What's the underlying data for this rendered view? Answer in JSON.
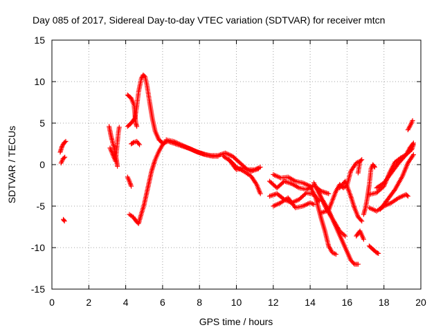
{
  "chart_data": {
    "type": "scatter",
    "title": "Day 085 of 2017, Sidereal Day-to-day VTEC variation (SDTVAR) for receiver mtcn",
    "xlabel": "GPS time / hours",
    "ylabel": "SDTVAR / TECUs",
    "xlim": [
      0,
      20
    ],
    "ylim": [
      -15,
      15
    ],
    "xticks": [
      0,
      2,
      4,
      6,
      8,
      10,
      12,
      14,
      16,
      18,
      20
    ],
    "yticks": [
      -15,
      -10,
      -5,
      0,
      5,
      10,
      15
    ],
    "xtick_labels": [
      "0",
      "2",
      "4",
      "6",
      "8",
      "10",
      "12",
      "14",
      "16",
      "18",
      "20"
    ],
    "ytick_labels": [
      "-15",
      "-10",
      "-5",
      "0",
      "5",
      "10",
      "15"
    ],
    "grid": true,
    "marker": "plus",
    "color": "#ff0000",
    "series": [
      {
        "name": "trace-a",
        "points": [
          [
            0.45,
            1.5
          ],
          [
            0.55,
            2.2
          ],
          [
            0.65,
            2.6
          ],
          [
            0.75,
            2.8
          ]
        ]
      },
      {
        "name": "trace-b",
        "points": [
          [
            0.5,
            0.2
          ],
          [
            0.6,
            0.7
          ],
          [
            0.7,
            0.9
          ]
        ]
      },
      {
        "name": "trace-c",
        "points": [
          [
            0.62,
            -6.6
          ],
          [
            0.68,
            -6.8
          ]
        ]
      },
      {
        "name": "trace-d",
        "points": [
          [
            3.1,
            4.6
          ],
          [
            3.2,
            3.5
          ],
          [
            3.3,
            2.6
          ],
          [
            3.4,
            1.8
          ],
          [
            3.5,
            0.6
          ],
          [
            3.55,
            -0.2
          ]
        ]
      },
      {
        "name": "trace-e",
        "points": [
          [
            3.15,
            2.0
          ],
          [
            3.3,
            1.2
          ],
          [
            3.45,
            0.4
          ],
          [
            3.6,
            3.8
          ],
          [
            3.65,
            4.5
          ]
        ]
      },
      {
        "name": "trace-f",
        "points": [
          [
            4.1,
            8.4
          ],
          [
            4.3,
            8.0
          ],
          [
            4.45,
            7.2
          ],
          [
            4.5,
            6.0
          ],
          [
            4.55,
            5.0
          ],
          [
            4.6,
            4.6
          ]
        ]
      },
      {
        "name": "trace-g",
        "points": [
          [
            4.1,
            4.6
          ],
          [
            4.3,
            5.0
          ],
          [
            4.5,
            5.6
          ],
          [
            4.6,
            7.0
          ],
          [
            4.7,
            8.8
          ],
          [
            4.85,
            10.4
          ],
          [
            4.95,
            10.8
          ],
          [
            5.05,
            10.6
          ],
          [
            5.15,
            9.6
          ],
          [
            5.3,
            7.5
          ],
          [
            5.45,
            5.5
          ],
          [
            5.6,
            4.0
          ],
          [
            5.8,
            3.0
          ],
          [
            6.0,
            2.6
          ],
          [
            6.3,
            2.8
          ],
          [
            6.7,
            2.5
          ],
          [
            7.1,
            2.2
          ],
          [
            7.5,
            1.9
          ],
          [
            7.9,
            1.5
          ],
          [
            8.3,
            1.2
          ],
          [
            8.7,
            1.0
          ],
          [
            9.0,
            1.0
          ]
        ]
      },
      {
        "name": "trace-h",
        "points": [
          [
            4.1,
            -1.5
          ],
          [
            4.2,
            -2.0
          ],
          [
            4.3,
            -2.6
          ]
        ]
      },
      {
        "name": "trace-i",
        "points": [
          [
            4.2,
            -6.0
          ],
          [
            4.4,
            -6.3
          ],
          [
            4.6,
            -6.9
          ],
          [
            4.7,
            -7.1
          ],
          [
            4.8,
            -6.3
          ],
          [
            5.0,
            -4.8
          ],
          [
            5.2,
            -2.8
          ],
          [
            5.4,
            -0.8
          ],
          [
            5.6,
            0.6
          ],
          [
            5.8,
            1.6
          ],
          [
            6.0,
            2.4
          ],
          [
            6.2,
            2.8
          ]
        ]
      },
      {
        "name": "trace-j",
        "points": [
          [
            4.3,
            2.5
          ],
          [
            4.45,
            2.7
          ],
          [
            4.6,
            2.8
          ],
          [
            4.75,
            2.4
          ]
        ]
      },
      {
        "name": "trace-k",
        "points": [
          [
            6.2,
            3.0
          ],
          [
            6.6,
            2.8
          ],
          [
            7.0,
            2.4
          ],
          [
            7.4,
            2.0
          ],
          [
            7.8,
            1.6
          ],
          [
            8.2,
            1.3
          ],
          [
            8.6,
            1.1
          ],
          [
            9.0,
            1.1
          ],
          [
            9.4,
            1.4
          ],
          [
            9.8,
            1.0
          ],
          [
            10.2,
            0.2
          ],
          [
            10.6,
            -0.6
          ],
          [
            11.0,
            -0.6
          ],
          [
            11.3,
            -0.3
          ]
        ]
      },
      {
        "name": "trace-l",
        "points": [
          [
            9.3,
            1.0
          ],
          [
            9.7,
            0.4
          ],
          [
            10.0,
            -0.3
          ],
          [
            10.4,
            -0.8
          ],
          [
            10.8,
            -1.4
          ],
          [
            11.1,
            -2.4
          ],
          [
            11.3,
            -3.5
          ]
        ]
      },
      {
        "name": "trace-m",
        "points": [
          [
            9.6,
            0.6
          ],
          [
            10.0,
            -0.6
          ],
          [
            10.4,
            -0.4
          ],
          [
            10.8,
            -0.8
          ],
          [
            11.2,
            -0.5
          ]
        ]
      },
      {
        "name": "trace-n",
        "points": [
          [
            11.8,
            -2.0
          ],
          [
            12.2,
            -2.8
          ],
          [
            12.6,
            -2.0
          ],
          [
            13.0,
            -2.3
          ],
          [
            13.4,
            -2.8
          ],
          [
            13.8,
            -3.0
          ],
          [
            14.2,
            -2.5
          ],
          [
            14.6,
            -3.2
          ],
          [
            15.0,
            -3.5
          ]
        ]
      },
      {
        "name": "trace-o",
        "points": [
          [
            11.8,
            -3.8
          ],
          [
            12.2,
            -3.5
          ],
          [
            12.6,
            -4.2
          ],
          [
            13.0,
            -4.6
          ],
          [
            13.4,
            -4.2
          ],
          [
            13.8,
            -3.4
          ],
          [
            14.2,
            -3.6
          ],
          [
            14.5,
            -4.4
          ]
        ]
      },
      {
        "name": "trace-p",
        "points": [
          [
            12.0,
            -1.2
          ],
          [
            12.4,
            -1.6
          ],
          [
            12.8,
            -1.5
          ],
          [
            13.2,
            -2.0
          ],
          [
            13.6,
            -2.2
          ],
          [
            14.0,
            -2.6
          ]
        ]
      },
      {
        "name": "trace-q",
        "points": [
          [
            12.0,
            -5.0
          ],
          [
            12.4,
            -4.6
          ],
          [
            12.8,
            -4.0
          ],
          [
            13.2,
            -5.2
          ],
          [
            13.6,
            -5.0
          ],
          [
            14.0,
            -4.6
          ],
          [
            14.2,
            -4.8
          ]
        ]
      },
      {
        "name": "trace-r",
        "points": [
          [
            14.0,
            -2.6
          ],
          [
            14.3,
            -4.0
          ],
          [
            14.6,
            -6.5
          ],
          [
            14.8,
            -8.0
          ],
          [
            15.0,
            -9.8
          ],
          [
            15.2,
            -10.6
          ],
          [
            15.4,
            -10.8
          ]
        ]
      },
      {
        "name": "trace-s",
        "points": [
          [
            14.2,
            -2.2
          ],
          [
            14.6,
            -4.0
          ],
          [
            15.0,
            -5.5
          ],
          [
            15.4,
            -7.5
          ],
          [
            15.8,
            -9.5
          ],
          [
            16.2,
            -11.5
          ],
          [
            16.4,
            -12.0
          ],
          [
            16.6,
            -12.0
          ]
        ]
      },
      {
        "name": "trace-t",
        "points": [
          [
            14.4,
            -3.0
          ],
          [
            14.8,
            -5.0
          ],
          [
            15.2,
            -6.5
          ],
          [
            15.6,
            -8.0
          ],
          [
            15.9,
            -8.6
          ]
        ]
      },
      {
        "name": "trace-u",
        "points": [
          [
            14.6,
            -5.8
          ],
          [
            15.0,
            -5.5
          ],
          [
            15.4,
            -3.2
          ],
          [
            15.6,
            -2.4
          ],
          [
            15.8,
            -2.8
          ],
          [
            16.0,
            -2.5
          ],
          [
            16.2,
            -0.8
          ],
          [
            16.5,
            0.2
          ],
          [
            16.7,
            0.4
          ]
        ]
      },
      {
        "name": "trace-v",
        "points": [
          [
            15.6,
            -2.8
          ],
          [
            15.9,
            -2.0
          ],
          [
            16.2,
            -3.8
          ],
          [
            16.4,
            -5.2
          ],
          [
            16.6,
            -6.3
          ],
          [
            16.8,
            -6.8
          ]
        ]
      },
      {
        "name": "trace-w",
        "points": [
          [
            16.6,
            -1.0
          ],
          [
            16.7,
            0.4
          ],
          [
            16.8,
            0.6
          ]
        ]
      },
      {
        "name": "trace-x",
        "points": [
          [
            16.5,
            -8.6
          ],
          [
            16.7,
            -8.0
          ],
          [
            16.9,
            -9.0
          ]
        ]
      },
      {
        "name": "trace-y",
        "points": [
          [
            16.9,
            -6.0
          ],
          [
            17.0,
            -5.2
          ],
          [
            17.1,
            -4.0
          ],
          [
            17.2,
            -2.5
          ],
          [
            17.3,
            -0.5
          ],
          [
            17.4,
            0.0
          ],
          [
            17.5,
            -0.3
          ]
        ]
      },
      {
        "name": "trace-z",
        "points": [
          [
            17.2,
            -9.8
          ],
          [
            17.4,
            -10.2
          ],
          [
            17.6,
            -10.6
          ],
          [
            17.7,
            -10.7
          ]
        ]
      },
      {
        "name": "trace-aa",
        "points": [
          [
            17.2,
            -3.6
          ],
          [
            17.6,
            -3.4
          ],
          [
            18.0,
            -2.6
          ],
          [
            18.3,
            -1.0
          ],
          [
            18.6,
            0.3
          ],
          [
            18.9,
            0.8
          ],
          [
            19.2,
            1.2
          ],
          [
            19.5,
            1.8
          ],
          [
            19.6,
            2.4
          ]
        ]
      },
      {
        "name": "trace-ab",
        "points": [
          [
            17.2,
            -5.2
          ],
          [
            17.6,
            -5.6
          ],
          [
            18.0,
            -5.0
          ],
          [
            18.4,
            -4.6
          ],
          [
            18.8,
            -4.0
          ],
          [
            19.2,
            -3.6
          ],
          [
            19.3,
            -3.8
          ]
        ]
      },
      {
        "name": "trace-ac",
        "points": [
          [
            17.6,
            -2.8
          ],
          [
            18.0,
            -2.2
          ],
          [
            18.4,
            -1.0
          ],
          [
            18.8,
            0.2
          ],
          [
            19.2,
            1.2
          ],
          [
            19.4,
            2.0
          ],
          [
            19.6,
            2.6
          ]
        ]
      },
      {
        "name": "trace-ad",
        "points": [
          [
            17.8,
            -5.4
          ],
          [
            18.2,
            -4.2
          ],
          [
            18.6,
            -3.0
          ],
          [
            19.0,
            -1.4
          ],
          [
            19.3,
            0.2
          ],
          [
            19.6,
            1.2
          ]
        ]
      },
      {
        "name": "trace-ae",
        "points": [
          [
            19.3,
            4.2
          ],
          [
            19.45,
            4.8
          ],
          [
            19.55,
            5.3
          ]
        ]
      }
    ]
  }
}
